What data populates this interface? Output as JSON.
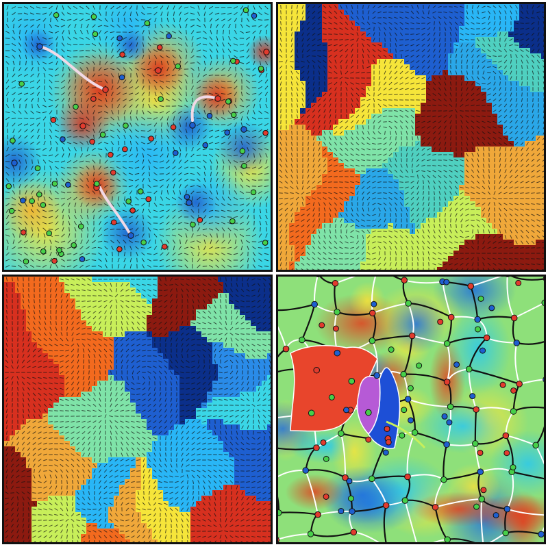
{
  "figure": {
    "panels": [
      {
        "key": "panel-a",
        "kind": "orientation-heatmap-with-defects",
        "palette": [
          "#08306b",
          "#1565c0",
          "#1e88e5",
          "#29b6f6",
          "#3ad6e6",
          "#7fe3a8",
          "#c8ef5a",
          "#f6e53a",
          "#fbb32a",
          "#f36a1e",
          "#d7301f",
          "#8c1a10"
        ],
        "colors": {
          "hot": "#d7301f",
          "cold": "#1e5fd0",
          "defect_red": "#e23b2e",
          "defect_green": "#47d04a",
          "defect_blue": "#1e5fd0",
          "trail": "#f1d9e6",
          "ticks": "#111111"
        }
      },
      {
        "key": "panel-b",
        "kind": "domain-mosaic",
        "colors": [
          "#d7301f",
          "#1e5fd0",
          "#c8ef5a",
          "#f0a83a",
          "#0b2f8a",
          "#2aa7e8",
          "#f6e53a",
          "#4fd0c0",
          "#7fe3a8",
          "#8c1a10",
          "#f36a1e",
          "#29b6f6"
        ]
      },
      {
        "key": "panel-c",
        "kind": "domain-mosaic",
        "colors": [
          "#c8ef5a",
          "#29b6f6",
          "#0b2f8a",
          "#7fe3a8",
          "#f36a1e",
          "#1e5fd0",
          "#3ad6e6",
          "#8c1a10",
          "#f0a83a",
          "#d7301f",
          "#f6e53a",
          "#2a8be8"
        ]
      },
      {
        "key": "panel-d",
        "kind": "heatmap-with-network",
        "colors": {
          "edge_black": "#111111",
          "edge_white": "#ffffff",
          "node_red": "#e23b2e",
          "node_green": "#47d04a",
          "node_blue": "#1e5fd0",
          "highlight_red": "#e8452c",
          "highlight_purple": "#b65ad6",
          "highlight_blue": "#1d4fd6",
          "highlight_trail": "#c8ef5a"
        }
      }
    ]
  }
}
